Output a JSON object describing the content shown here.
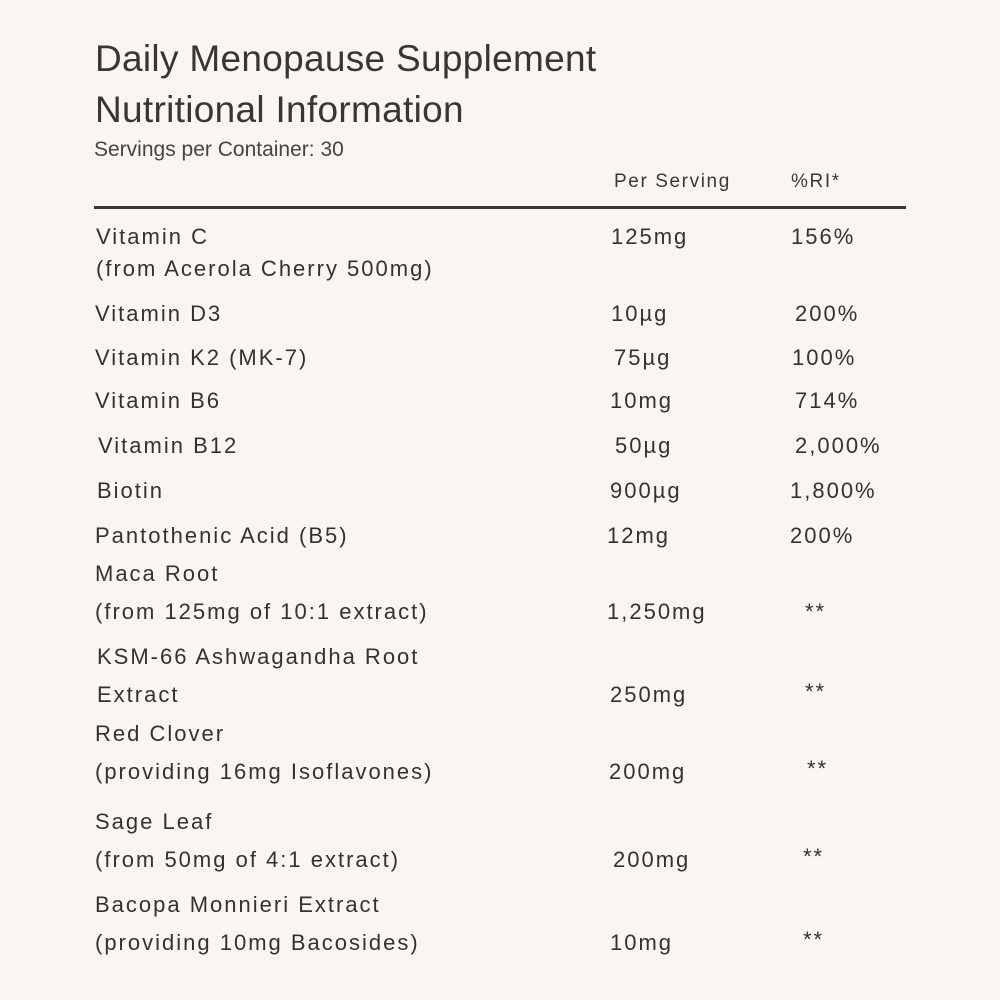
{
  "title_line1": "Daily Menopause Supplement",
  "title_line2": "Nutritional Information",
  "servings": "Servings per Container: 30",
  "headers": {
    "per_serving": "Per Serving",
    "ri": "%RI*"
  },
  "rows": [
    {
      "name": "Vitamin C",
      "detail": "(from Acerola Cherry 500mg)",
      "amount": "125mg",
      "ri": "156%"
    },
    {
      "name": "Vitamin D3",
      "amount": "10µg",
      "ri": "200%"
    },
    {
      "name": "Vitamin K2 (MK-7)",
      "amount": "75µg",
      "ri": "100%"
    },
    {
      "name": "Vitamin B6",
      "amount": "10mg",
      "ri": "714%"
    },
    {
      "name": "Vitamin B12",
      "amount": "50µg",
      "ri": "2,000%"
    },
    {
      "name": "Biotin",
      "amount": "900µg",
      "ri": "1,800%"
    },
    {
      "name": "Pantothenic Acid (B5)",
      "amount": "12mg",
      "ri": "200%"
    },
    {
      "name": "Maca Root",
      "detail": "(from 125mg of 10:1 extract)",
      "amount": "1,250mg",
      "ri": "**"
    },
    {
      "name": "KSM-66 Ashwagandha Root",
      "detail": "Extract",
      "amount": "250mg",
      "ri": "**"
    },
    {
      "name": "Red Clover",
      "detail": "(providing 16mg Isoflavones)",
      "amount": "200mg",
      "ri": "**"
    },
    {
      "name": "Sage Leaf",
      "detail": "(from 50mg of 4:1 extract)",
      "amount": "200mg",
      "ri": "**"
    },
    {
      "name": "Bacopa Monnieri Extract",
      "detail": "(providing 10mg Bacosides)",
      "amount": "10mg",
      "ri": "**"
    }
  ]
}
